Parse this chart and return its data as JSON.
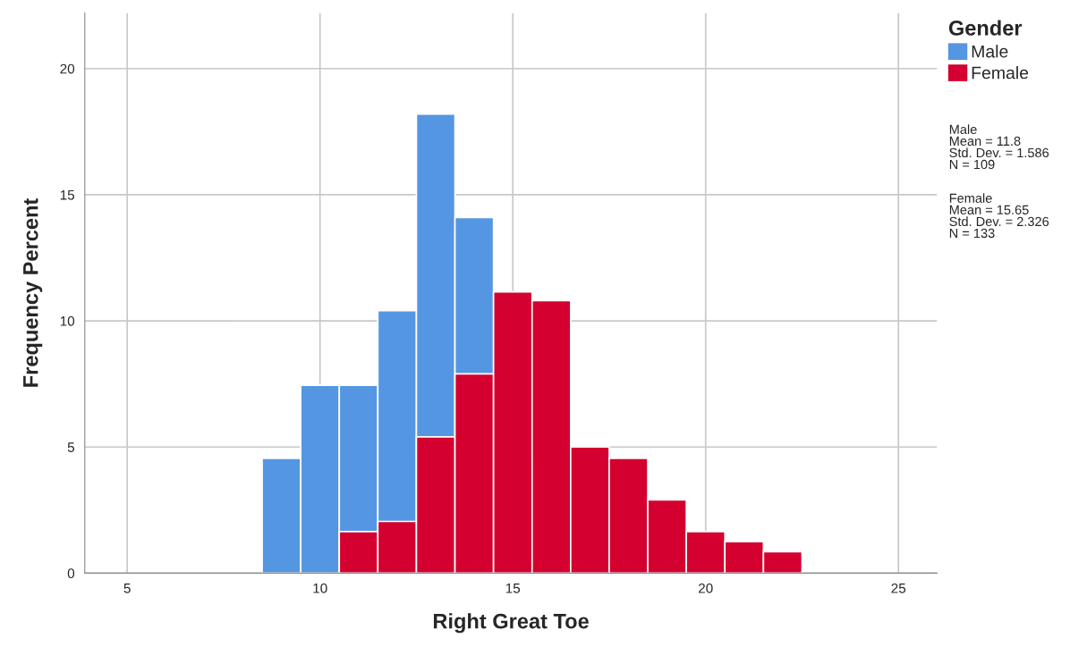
{
  "chart_data": {
    "type": "histogram",
    "xlabel": "Right Great Toe",
    "ylabel": "Frequency Percent",
    "legend_title": "Gender",
    "bins": [
      8.5,
      9.5,
      10.5,
      11.5,
      12.5,
      13.5,
      14.5,
      15.5,
      16.5,
      17.5,
      18.5,
      19.5,
      20.5,
      21.5,
      22.5
    ],
    "series": [
      {
        "name": "Male",
        "color": "#5596e3",
        "values": [
          4.55,
          7.45,
          7.45,
          10.4,
          18.2,
          14.1,
          null,
          null,
          null,
          null,
          null,
          null,
          null,
          null
        ]
      },
      {
        "name": "Female",
        "color": "#d40030",
        "values": [
          null,
          null,
          1.65,
          2.05,
          5.4,
          7.9,
          11.15,
          10.8,
          5.0,
          4.55,
          2.9,
          1.65,
          1.25,
          0.85
        ]
      }
    ],
    "xlim": [
      3.9,
      26
    ],
    "ylim": [
      0,
      22.2
    ],
    "xticks": [
      5,
      10,
      15,
      20,
      25
    ],
    "yticks": [
      0,
      5,
      10,
      15,
      20
    ],
    "grid": true,
    "legend": "top right",
    "annotations": [
      "Male\nMean = 11.8\nStd. Dev. = 1.586\nN = 109",
      "Female\nMean = 15.65\nStd. Dev. = 2.326\nN = 133"
    ]
  }
}
